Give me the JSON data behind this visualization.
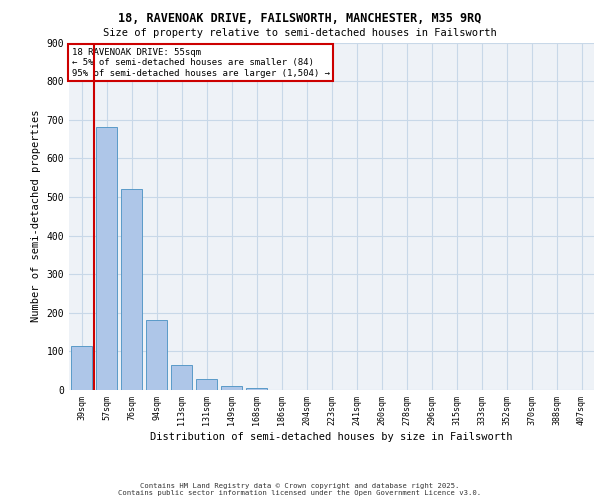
{
  "title_line1": "18, RAVENOAK DRIVE, FAILSWORTH, MANCHESTER, M35 9RQ",
  "title_line2": "Size of property relative to semi-detached houses in Failsworth",
  "xlabel": "Distribution of semi-detached houses by size in Failsworth",
  "ylabel": "Number of semi-detached properties",
  "categories": [
    "39sqm",
    "57sqm",
    "76sqm",
    "94sqm",
    "113sqm",
    "131sqm",
    "149sqm",
    "168sqm",
    "186sqm",
    "204sqm",
    "223sqm",
    "241sqm",
    "260sqm",
    "278sqm",
    "296sqm",
    "315sqm",
    "333sqm",
    "352sqm",
    "370sqm",
    "388sqm",
    "407sqm"
  ],
  "values": [
    113,
    681,
    521,
    181,
    65,
    29,
    11,
    6,
    0,
    0,
    0,
    0,
    0,
    0,
    0,
    0,
    0,
    0,
    0,
    0,
    0
  ],
  "bar_color": "#aec6e8",
  "bar_edgecolor": "#5a9ac8",
  "property_line_color": "#cc0000",
  "annotation_text": "18 RAVENOAK DRIVE: 55sqm\n← 5% of semi-detached houses are smaller (84)\n95% of semi-detached houses are larger (1,504) →",
  "annotation_box_edgecolor": "#cc0000",
  "ylim": [
    0,
    900
  ],
  "yticks": [
    0,
    100,
    200,
    300,
    400,
    500,
    600,
    700,
    800,
    900
  ],
  "grid_color": "#c8d8e8",
  "bg_color": "#eef2f7",
  "footer_line1": "Contains HM Land Registry data © Crown copyright and database right 2025.",
  "footer_line2": "Contains public sector information licensed under the Open Government Licence v3.0."
}
